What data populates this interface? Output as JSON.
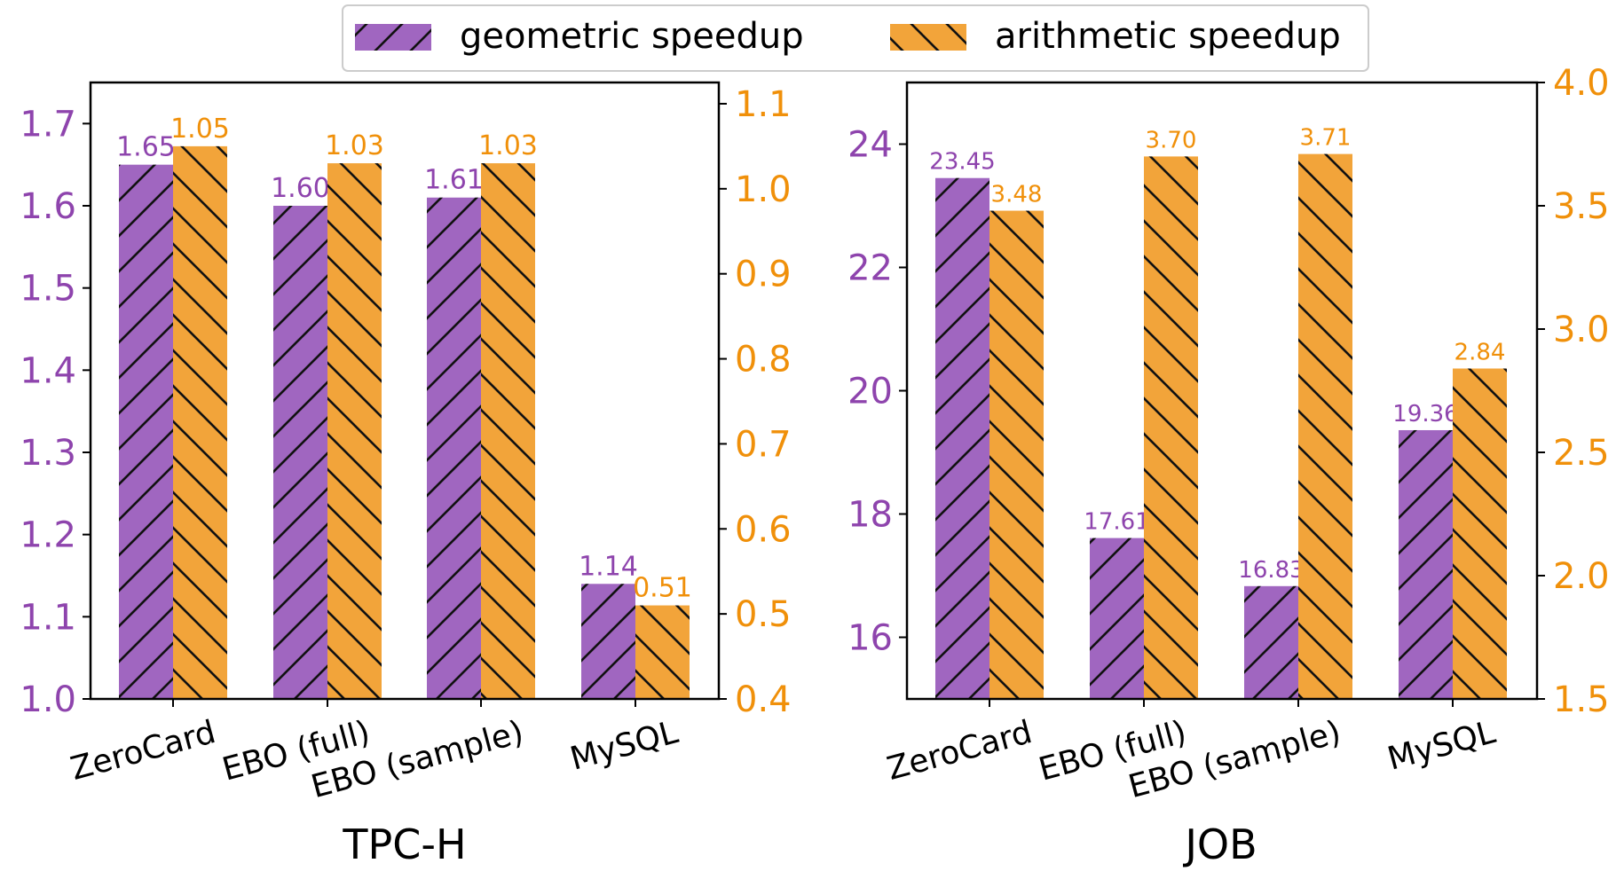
{
  "legend": {
    "items": [
      {
        "label": "geometric speedup",
        "color": "#a066c0",
        "hatch": "/"
      },
      {
        "label": "arithmetic speedup",
        "color": "#f2a43a",
        "hatch": "\\"
      }
    ]
  },
  "chart_data": [
    {
      "type": "bar",
      "title": "TPC-H",
      "categories": [
        "ZeroCard",
        "EBO (full)",
        "EBO (sample)",
        "MySQL"
      ],
      "series": [
        {
          "name": "geometric speedup",
          "axis": "left",
          "values": [
            1.65,
            1.6,
            1.61,
            1.14
          ],
          "labels": [
            "1.65",
            "1.60",
            "1.61",
            "1.14"
          ]
        },
        {
          "name": "arithmetic speedup",
          "axis": "right",
          "values": [
            1.05,
            1.03,
            1.03,
            0.51
          ],
          "labels": [
            "1.05",
            "1.03",
            "1.03",
            "0.51"
          ]
        }
      ],
      "left_axis": {
        "ylim": [
          1.0,
          1.75
        ],
        "ticks": [
          1.0,
          1.1,
          1.2,
          1.3,
          1.4,
          1.5,
          1.6,
          1.7
        ],
        "tick_labels": [
          "1.0",
          "1.1",
          "1.2",
          "1.3",
          "1.4",
          "1.5",
          "1.6",
          "1.7"
        ],
        "color": "#8e44ad"
      },
      "right_axis": {
        "ylim": [
          0.4,
          1.125
        ],
        "ticks": [
          0.4,
          0.5,
          0.6,
          0.7,
          0.8,
          0.9,
          1.0,
          1.1
        ],
        "tick_labels": [
          "0.4",
          "0.5",
          "0.6",
          "0.7",
          "0.8",
          "0.9",
          "1.0",
          "1.1"
        ],
        "color": "#f0900a"
      }
    },
    {
      "type": "bar",
      "title": "JOB",
      "categories": [
        "ZeroCard",
        "EBO (full)",
        "EBO (sample)",
        "MySQL"
      ],
      "series": [
        {
          "name": "geometric speedup",
          "axis": "left",
          "values": [
            23.45,
            17.61,
            16.83,
            19.36
          ],
          "labels": [
            "23.45",
            "17.61",
            "16.83",
            "19.36"
          ]
        },
        {
          "name": "arithmetic speedup",
          "axis": "right",
          "values": [
            3.48,
            3.7,
            3.71,
            2.84
          ],
          "labels": [
            "3.48",
            "3.70",
            "3.71",
            "2.84"
          ]
        }
      ],
      "left_axis": {
        "ylim": [
          15.0,
          25.0
        ],
        "ticks": [
          16,
          18,
          20,
          22,
          24
        ],
        "tick_labels": [
          "16",
          "18",
          "20",
          "22",
          "24"
        ],
        "color": "#8e44ad"
      },
      "right_axis": {
        "ylim": [
          1.5,
          4.0
        ],
        "ticks": [
          1.5,
          2.0,
          2.5,
          3.0,
          3.5,
          4.0
        ],
        "tick_labels": [
          "1.5",
          "2.0",
          "2.5",
          "3.0",
          "3.5",
          "4.0"
        ],
        "color": "#f0900a"
      }
    }
  ]
}
